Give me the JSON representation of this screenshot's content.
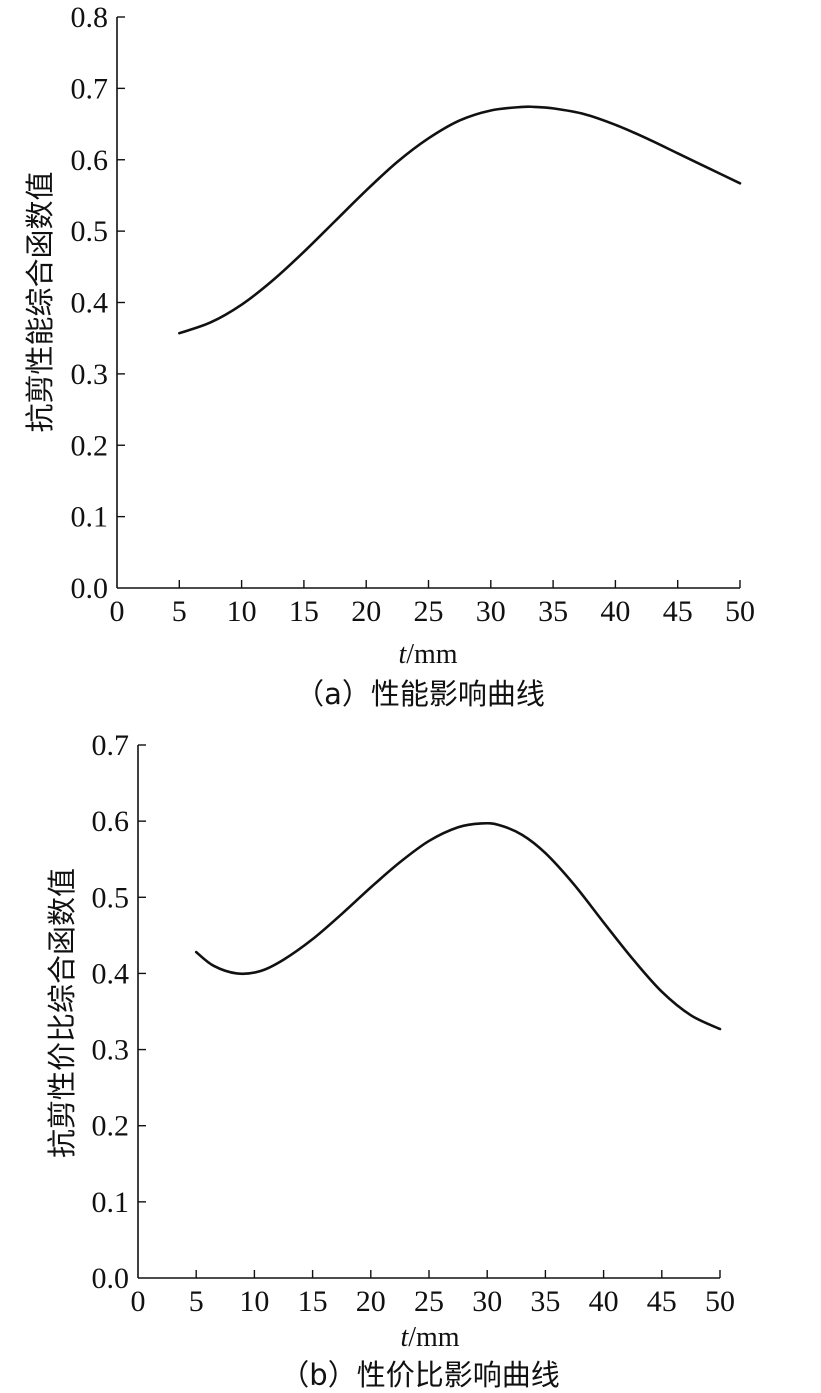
{
  "chart_data": [
    {
      "type": "line",
      "caption": "（a）性能影响曲线",
      "xlabel": "t/mm",
      "xlabel_italic": "t",
      "xlabel_unit": "/mm",
      "ylabel": "抗剪性能综合函数值",
      "xlim": [
        0,
        50
      ],
      "ylim": [
        0,
        0.8
      ],
      "x_ticks": [
        "0",
        "5",
        "10",
        "15",
        "20",
        "25",
        "30",
        "35",
        "40",
        "45",
        "50"
      ],
      "y_ticks": [
        "0.0",
        "0.1",
        "0.2",
        "0.3",
        "0.4",
        "0.5",
        "0.6",
        "0.7",
        "0.8"
      ],
      "grid": false,
      "series": [
        {
          "x": [
            5,
            7.5,
            10,
            12.5,
            15,
            17.5,
            20,
            22.5,
            25,
            27.5,
            30,
            32.5,
            33.5,
            35,
            37.5,
            40,
            42.5,
            45,
            47.5,
            50
          ],
          "values": [
            0.357,
            0.372,
            0.397,
            0.431,
            0.471,
            0.514,
            0.557,
            0.597,
            0.63,
            0.655,
            0.669,
            0.674,
            0.674,
            0.672,
            0.664,
            0.649,
            0.63,
            0.609,
            0.588,
            0.567
          ]
        }
      ]
    },
    {
      "type": "line",
      "caption": "（b）性价比影响曲线",
      "xlabel": "t/mm",
      "xlabel_italic": "t",
      "xlabel_unit": "/mm",
      "ylabel": "抗剪性价比综合函数值",
      "xlim": [
        0,
        50
      ],
      "ylim": [
        0,
        0.7
      ],
      "x_ticks": [
        "0",
        "5",
        "10",
        "15",
        "20",
        "25",
        "30",
        "35",
        "40",
        "45",
        "50"
      ],
      "y_ticks": [
        "0.0",
        "0.1",
        "0.2",
        "0.3",
        "0.4",
        "0.5",
        "0.6",
        "0.7"
      ],
      "grid": false,
      "series": [
        {
          "x": [
            5,
            6.5,
            8.5,
            10.5,
            12.5,
            15,
            17.5,
            20,
            22.5,
            25,
            27.5,
            29.5,
            31,
            33,
            35,
            37.5,
            40,
            42.5,
            45,
            47.5,
            50
          ],
          "values": [
            0.428,
            0.41,
            0.4,
            0.403,
            0.418,
            0.445,
            0.478,
            0.513,
            0.546,
            0.574,
            0.592,
            0.597,
            0.595,
            0.582,
            0.558,
            0.516,
            0.467,
            0.419,
            0.376,
            0.345,
            0.327
          ]
        }
      ]
    }
  ]
}
